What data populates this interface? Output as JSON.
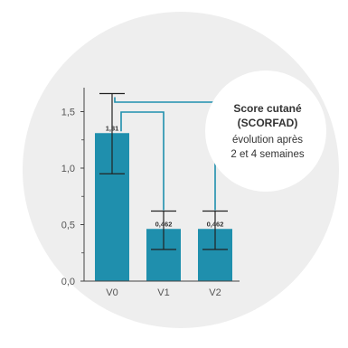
{
  "colors": {
    "background_circle": "#eeeeee",
    "bar": "#1f8fad",
    "bracket": "#1f8fad",
    "axis": "#444444",
    "error_bar": "#222222",
    "callout_fill": "#ffffff",
    "text": "#555555"
  },
  "callout": {
    "title_line1": "Score cutané",
    "title_line2": "(SCORFAD)",
    "line3": "évolution après",
    "line4": "2 et 4 semaines"
  },
  "chart_data": {
    "type": "bar",
    "categories": [
      "V0",
      "V1",
      "V2"
    ],
    "values": [
      1.31,
      0.462,
      0.462
    ],
    "value_labels": [
      "1,31",
      "0,462",
      "0,462"
    ],
    "error_high": [
      1.66,
      0.62,
      0.62
    ],
    "error_low": [
      0.95,
      0.28,
      0.28
    ],
    "ylim": [
      0,
      1.75
    ],
    "yticks": [
      0.0,
      0.5,
      1.0,
      1.5
    ],
    "ytick_labels": [
      "0,0",
      "0,5",
      "1,0",
      "1,5"
    ],
    "xlabel": "",
    "ylabel": "",
    "grid": false,
    "comparisons": [
      {
        "from": "V0",
        "to": "V1"
      },
      {
        "from": "V0",
        "to": "V2"
      }
    ]
  }
}
